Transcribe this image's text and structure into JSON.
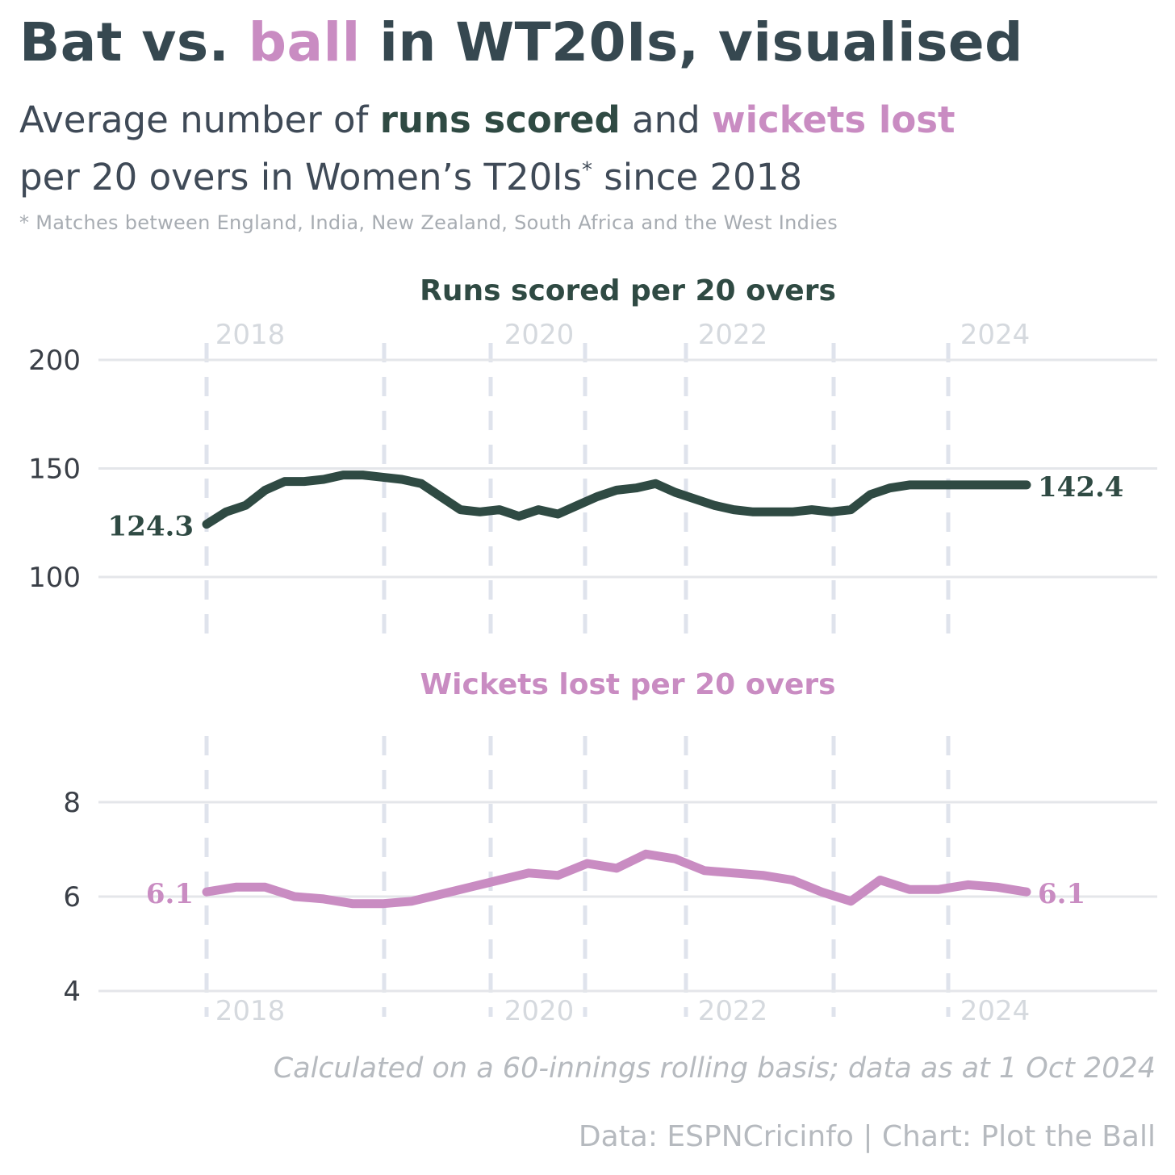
{
  "title": {
    "part1": "Bat vs. ",
    "highlight": "ball",
    "part2": " in WT20Is, visualised"
  },
  "subtitle": {
    "line1_a": "Average number of ",
    "runs": "runs scored",
    "line1_b": " and ",
    "wickets": "wickets lost",
    "line2_a": "per 20 overs in Women’s T20Is",
    "star": "*",
    "line2_b": " since 2018"
  },
  "footnote": "* Matches between England, India, New Zealand, South Africa and the West Indies",
  "caption": "Calculated on a 60-innings rolling basis; data as at 1 Oct 2024",
  "source": "Data: ESPNCricinfo | Chart: Plot the Ball",
  "colors": {
    "runs": "#2f4a43",
    "wickets": "#c98cc2",
    "grid": "#e4e6ea",
    "dashed": "#dfe3ec",
    "year_label": "#d5d9de"
  },
  "chart_data": [
    {
      "type": "line",
      "title": "Runs scored per 20 overs",
      "x_label_years": [
        "2018",
        "2020",
        "2022",
        "2024"
      ],
      "y_ticks": [
        100,
        150,
        200
      ],
      "ylim": [
        100,
        200
      ],
      "grid": true,
      "series": [
        {
          "x": [
            0,
            4,
            8,
            12,
            16,
            20,
            24,
            28,
            32,
            36,
            40,
            44,
            48,
            52,
            56,
            60,
            64,
            68,
            72,
            76,
            80,
            84,
            88,
            92,
            96,
            100
          ],
          "values": [
            124.3,
            130,
            133,
            140,
            144,
            144,
            145,
            147,
            147,
            146,
            145,
            143,
            137,
            131,
            130,
            131,
            128,
            131,
            129,
            133,
            137,
            140,
            141,
            143,
            139,
            136
          ],
          "end_labels": {
            "first": "124.3",
            "last": "142.4"
          }
        },
        {
          "x": [
            100,
            104,
            108,
            112,
            116,
            120,
            124,
            128,
            132,
            136,
            140,
            144,
            148,
            152,
            156,
            160,
            164,
            168
          ],
          "values": [
            136,
            133,
            131,
            130,
            130,
            130,
            131,
            130,
            131,
            138,
            141,
            142.4,
            142.4,
            142.4,
            142.4,
            142.4,
            142.4,
            142.4
          ]
        }
      ]
    },
    {
      "type": "line",
      "title": "Wickets lost per 20 overs",
      "x_label_years": [
        "2018",
        "2020",
        "2022",
        "2024"
      ],
      "y_ticks": [
        4,
        6,
        8
      ],
      "ylim": [
        4,
        8
      ],
      "grid": true,
      "series": [
        {
          "x": [
            0,
            6,
            12,
            18,
            24,
            30,
            36,
            42,
            48,
            54,
            60,
            66,
            72,
            78,
            84,
            90,
            96,
            102,
            108,
            114,
            120,
            126,
            132,
            138,
            144,
            150,
            156,
            162,
            168
          ],
          "values": [
            6.1,
            6.2,
            6.2,
            6.0,
            5.95,
            5.85,
            5.85,
            5.9,
            6.05,
            6.2,
            6.35,
            6.5,
            6.45,
            6.7,
            6.6,
            6.9,
            6.8,
            6.55,
            6.5,
            6.45,
            6.35,
            6.1,
            5.9,
            6.35,
            6.15,
            6.15,
            6.25,
            6.2,
            6.1
          ],
          "end_labels": {
            "first": "6.1",
            "last": "6.1"
          }
        }
      ]
    }
  ]
}
